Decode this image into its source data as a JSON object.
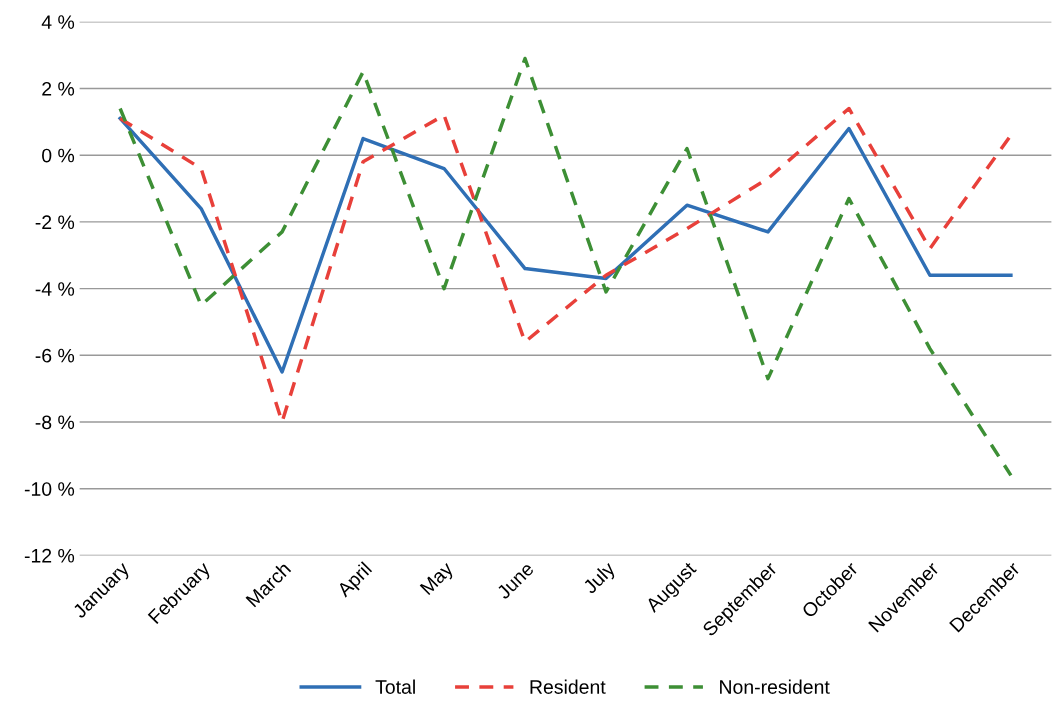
{
  "chart_data": {
    "type": "line",
    "categories": [
      "January",
      "February",
      "March",
      "April",
      "May",
      "June",
      "July",
      "August",
      "September",
      "October",
      "November",
      "December"
    ],
    "series": [
      {
        "name": "Total",
        "color": "#2f6fb5",
        "line_style": "solid",
        "values": [
          1.1,
          -1.6,
          -6.5,
          0.5,
          -0.4,
          -3.4,
          -3.7,
          -1.5,
          -2.3,
          0.8,
          -3.6,
          -3.6
        ]
      },
      {
        "name": "Resident",
        "color": "#e8403a",
        "line_style": "dashed",
        "values": [
          1.1,
          -0.4,
          -8.0,
          -0.2,
          1.2,
          -5.6,
          -3.6,
          -2.2,
          -0.7,
          1.4,
          -2.8,
          0.6
        ]
      },
      {
        "name": "Non-resident",
        "color": "#3d8f35",
        "line_style": "dashed",
        "values": [
          1.4,
          -4.5,
          -2.3,
          2.5,
          -4.0,
          2.9,
          -4.1,
          0.2,
          -6.7,
          -1.3,
          -5.8,
          -9.6
        ]
      }
    ],
    "ylim": [
      -12,
      4
    ],
    "yticks": [
      {
        "value": -12,
        "label": "-12 %"
      },
      {
        "value": -10,
        "label": "-10 %"
      },
      {
        "value": -8,
        "label": "-8 %"
      },
      {
        "value": -6,
        "label": "-6 %"
      },
      {
        "value": -4,
        "label": "-4 %"
      },
      {
        "value": -2,
        "label": "-2 %"
      },
      {
        "value": 0,
        "label": "0 %"
      },
      {
        "value": 2,
        "label": "2 %"
      },
      {
        "value": 4,
        "label": "4 %"
      }
    ],
    "grid": "y",
    "legend": "bottom"
  }
}
